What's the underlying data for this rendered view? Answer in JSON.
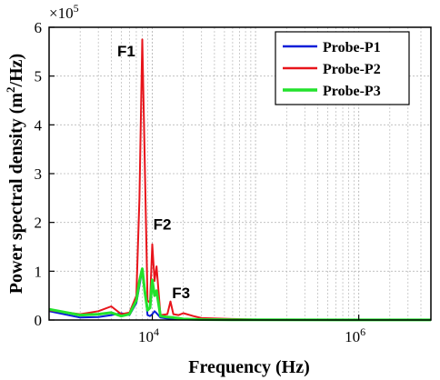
{
  "chart_data": {
    "type": "line",
    "xlabel": "Frequency (Hz)",
    "ylabel_main": "Power spectral density (m",
    "ylabel_sup": "2",
    "ylabel_end": "/Hz)",
    "x_scale": "log",
    "xlim": [
      1000,
      5000000
    ],
    "ylim": [
      0,
      6
    ],
    "y_multiplier": "×10",
    "y_multiplier_exp": "5",
    "x_ticks": [
      {
        "value": 10000,
        "base": "10",
        "exp": "4"
      },
      {
        "value": 1000000,
        "base": "10",
        "exp": "6"
      }
    ],
    "y_ticks": [
      0,
      1,
      2,
      3,
      4,
      5,
      6
    ],
    "grid": true,
    "legend_position": "top-right",
    "colors": {
      "p1": "#0b1ed8",
      "p2": "#e8141b",
      "p3": "#22e22c",
      "grid": "#b8b8b8"
    },
    "series": [
      {
        "name": "Probe-P1",
        "color": "#0b1ed8",
        "x": [
          1000,
          2000,
          3000,
          4000,
          5000,
          6000,
          7000,
          7500,
          8000,
          8500,
          9000,
          9500,
          10000,
          10500,
          11000,
          12000,
          14000,
          16000,
          20000,
          30000,
          60000,
          100000,
          1000000,
          5000000
        ],
        "y": [
          0.18,
          0.05,
          0.06,
          0.1,
          0.14,
          0.1,
          0.35,
          0.7,
          1.05,
          0.6,
          0.1,
          0.08,
          0.12,
          0.18,
          0.14,
          0.05,
          0.03,
          0.02,
          0.01,
          0.01,
          0.005,
          0.005,
          0.002,
          0.001
        ]
      },
      {
        "name": "Probe-P2",
        "color": "#e8141b",
        "x": [
          1000,
          2000,
          3000,
          4000,
          5000,
          6000,
          7000,
          7500,
          8000,
          8500,
          9000,
          9500,
          10000,
          10500,
          11000,
          12000,
          14000,
          15000,
          16000,
          18000,
          20000,
          25000,
          30000,
          60000,
          100000,
          1000000,
          5000000
        ],
        "y": [
          0.2,
          0.12,
          0.18,
          0.28,
          0.12,
          0.15,
          0.5,
          2.5,
          5.75,
          3.0,
          0.4,
          0.35,
          1.55,
          0.8,
          1.1,
          0.1,
          0.12,
          0.38,
          0.12,
          0.1,
          0.14,
          0.08,
          0.04,
          0.02,
          0.01,
          0.005,
          0.002
        ]
      },
      {
        "name": "Probe-P3",
        "color": "#22e22c",
        "x": [
          1000,
          2000,
          3000,
          4000,
          5000,
          6000,
          7000,
          7500,
          8000,
          8500,
          9000,
          9500,
          10000,
          10500,
          11000,
          12000,
          14000,
          16000,
          20000,
          30000,
          60000,
          100000,
          1000000,
          5000000
        ],
        "y": [
          0.22,
          0.1,
          0.12,
          0.15,
          0.08,
          0.12,
          0.4,
          0.8,
          1.05,
          0.55,
          0.2,
          0.25,
          0.82,
          0.5,
          0.6,
          0.08,
          0.06,
          0.05,
          0.02,
          0.01,
          0.005,
          0.005,
          0.002,
          0.001
        ]
      }
    ],
    "annotations": [
      {
        "text": "F1",
        "x": 5600,
        "y": 5.4
      },
      {
        "text": "F2",
        "x": 12500,
        "y": 1.85
      },
      {
        "text": "F3",
        "x": 19000,
        "y": 0.45
      }
    ]
  }
}
